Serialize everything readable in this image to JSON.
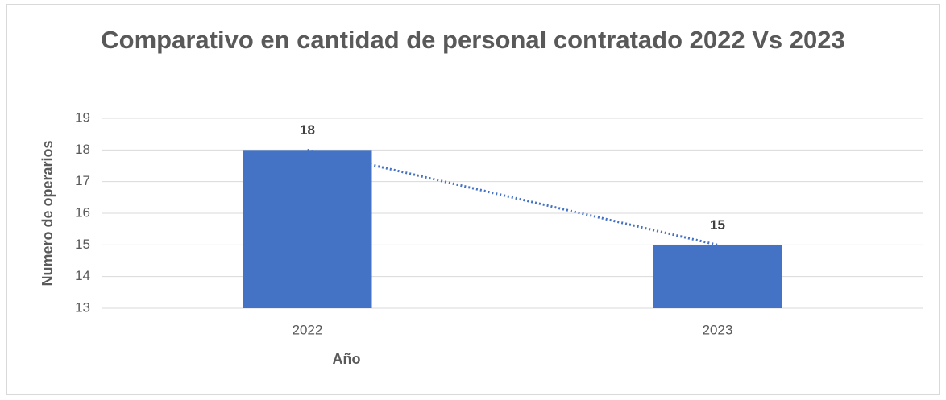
{
  "chart_data": {
    "type": "bar",
    "title": "Comparativo en cantidad de personal contratado 2022 Vs 2023",
    "x_label": "Año",
    "y_label": "Numero de operarios",
    "categories": [
      "2022",
      "2023"
    ],
    "values": [
      18,
      15
    ],
    "color": "#4472c4",
    "ylim": [
      13,
      19
    ],
    "yticks": [
      13,
      14,
      15,
      16,
      17,
      18,
      19
    ],
    "grid": true,
    "trendline": true,
    "trendline_color": "#4472c4"
  }
}
